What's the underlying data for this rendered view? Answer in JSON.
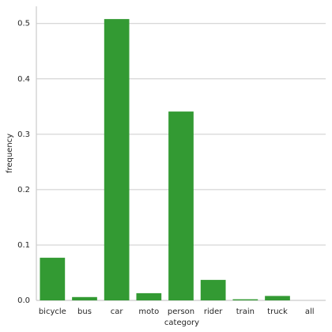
{
  "chart_data": {
    "type": "bar",
    "x_label": "category",
    "y_label": "frequency",
    "categories": [
      "bicycle",
      "bus",
      "car",
      "moto",
      "person",
      "rider",
      "train",
      "truck",
      "all"
    ],
    "values": [
      0.077,
      0.006,
      0.508,
      0.013,
      0.341,
      0.037,
      0.002,
      0.008,
      0
    ],
    "color": "#339a33",
    "ylim": [
      0,
      0.531
    ],
    "yticks": [
      {
        "value": 0,
        "label": "0.0"
      },
      0.1,
      0.2,
      0.3,
      0.4,
      0.5
    ],
    "grid": true
  }
}
